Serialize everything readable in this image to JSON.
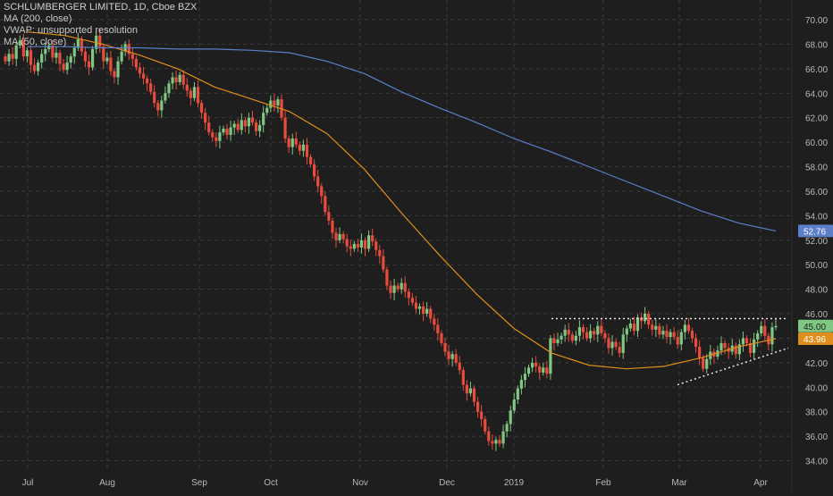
{
  "legend": {
    "title": "SCHLUMBERGER LIMITED, 1D, Cboe BZX",
    "ma200": "MA (200, close)",
    "vwap": "VWAP: unsupported resolution",
    "ma50": "MA (50, close)"
  },
  "colors": {
    "background": "#1e1e1e",
    "grid": "#3a3a3a",
    "up": "#81c784",
    "down": "#e84c3d",
    "ma50": "#e08e1b",
    "ma200": "#5b7fc9",
    "dotted": "#e8e8e8",
    "axis_text": "#b8b8b8"
  },
  "chart_data": {
    "type": "candlestick",
    "title": "SCHLUMBERGER LIMITED, 1D, Cboe BZX",
    "x_ticks": [
      "Jul",
      "Aug",
      "Sep",
      "Oct",
      "Nov",
      "Dec",
      "2019",
      "Feb",
      "Mar",
      "Apr"
    ],
    "y_ticks": [
      "70.00",
      "68.00",
      "66.00",
      "64.00",
      "62.00",
      "60.00",
      "58.00",
      "56.00",
      "54.00",
      "52.00",
      "50.00",
      "48.00",
      "46.00",
      "44.00",
      "42.00",
      "40.00",
      "38.00",
      "36.00",
      "34.00"
    ],
    "ylim": [
      33.2,
      71.2
    ],
    "grid": true,
    "close_series": [
      66.6,
      67.2,
      66.8,
      67.9,
      68.3,
      67.0,
      67.5,
      66.3,
      65.8,
      66.5,
      67.2,
      67.6,
      67.9,
      66.9,
      67.3,
      66.4,
      65.9,
      66.5,
      67.0,
      67.7,
      68.4,
      67.4,
      66.6,
      66.1,
      67.6,
      68.7,
      67.8,
      66.6,
      66.9,
      65.8,
      65.3,
      66.6,
      67.4,
      68.0,
      67.2,
      66.8,
      66.1,
      65.6,
      65.2,
      64.8,
      64.1,
      63.2,
      62.6,
      63.4,
      64.0,
      64.8,
      65.3,
      64.9,
      65.5,
      64.7,
      64.2,
      63.6,
      64.5,
      63.2,
      62.4,
      61.6,
      60.8,
      60.4,
      60.1,
      60.8,
      61.1,
      60.6,
      61.2,
      61.5,
      61.0,
      61.8,
      61.3,
      62.0,
      61.6,
      60.9,
      61.4,
      62.4,
      62.8,
      63.4,
      63.0,
      63.5,
      62.0,
      60.3,
      59.6,
      60.3,
      59.8,
      59.3,
      59.8,
      58.8,
      58.2,
      57.2,
      56.4,
      55.6,
      54.3,
      53.6,
      52.6,
      52.0,
      52.5,
      52.1,
      51.5,
      51.3,
      51.7,
      51.4,
      52.0,
      51.3,
      52.4,
      51.9,
      51.2,
      50.7,
      49.6,
      48.3,
      47.7,
      48.3,
      48.0,
      48.5,
      47.8,
      47.3,
      46.9,
      46.4,
      46.6,
      46.0,
      46.4,
      45.6,
      45.1,
      44.4,
      43.6,
      42.9,
      42.3,
      42.7,
      42.0,
      41.4,
      40.2,
      39.5,
      39.9,
      38.8,
      38.0,
      37.4,
      36.4,
      35.6,
      35.4,
      35.7,
      35.4,
      36.4,
      37.0,
      38.1,
      39.0,
      39.9,
      40.6,
      41.1,
      41.6,
      42.0,
      41.7,
      41.2,
      41.6,
      41.1,
      44.0,
      43.6,
      43.9,
      44.2,
      44.7,
      44.3,
      43.8,
      44.2,
      44.9,
      44.5,
      44.0,
      44.6,
      44.3,
      45.0,
      44.4,
      44.0,
      43.2,
      43.7,
      43.3,
      42.8,
      44.3,
      44.8,
      45.2,
      44.6,
      45.7,
      45.4,
      46.0,
      45.1,
      44.7,
      45.0,
      44.3,
      44.6,
      44.1,
      44.5,
      44.1,
      43.5,
      44.5,
      45.1,
      44.6,
      44.0,
      43.3,
      42.4,
      41.5,
      42.3,
      42.9,
      42.5,
      43.0,
      43.6,
      43.2,
      42.9,
      43.4,
      42.7,
      43.5,
      44.0,
      43.6,
      42.8,
      43.9,
      44.4,
      45.0,
      44.2,
      43.5,
      44.9,
      45.0
    ],
    "series": [
      {
        "name": "MA (50, close)",
        "values": [
          69.0,
          68.7,
          68.0,
          67.1,
          66.0,
          64.5,
          63.5,
          62.5,
          60.7,
          57.8,
          54.2,
          50.8,
          47.6,
          44.8,
          42.8,
          41.8,
          41.5,
          41.7,
          42.4,
          43.3,
          43.96
        ]
      },
      {
        "name": "MA (200, close)",
        "values": [
          67.8,
          67.8,
          67.7,
          67.7,
          67.6,
          67.6,
          67.5,
          67.3,
          66.6,
          65.6,
          64.1,
          62.8,
          61.6,
          60.3,
          59.2,
          58.0,
          56.8,
          55.6,
          54.4,
          53.4,
          52.76
        ]
      }
    ],
    "ma_points_start": "Jul",
    "last_price_labels": [
      "52.76",
      "45.00",
      "43.96"
    ],
    "annotations": [
      {
        "type": "horizontal-resistance",
        "value": 45.6,
        "from": "2019",
        "to": "Apr"
      },
      {
        "type": "rising-support",
        "from_value": 40.2,
        "to_value": 43.2
      }
    ]
  }
}
